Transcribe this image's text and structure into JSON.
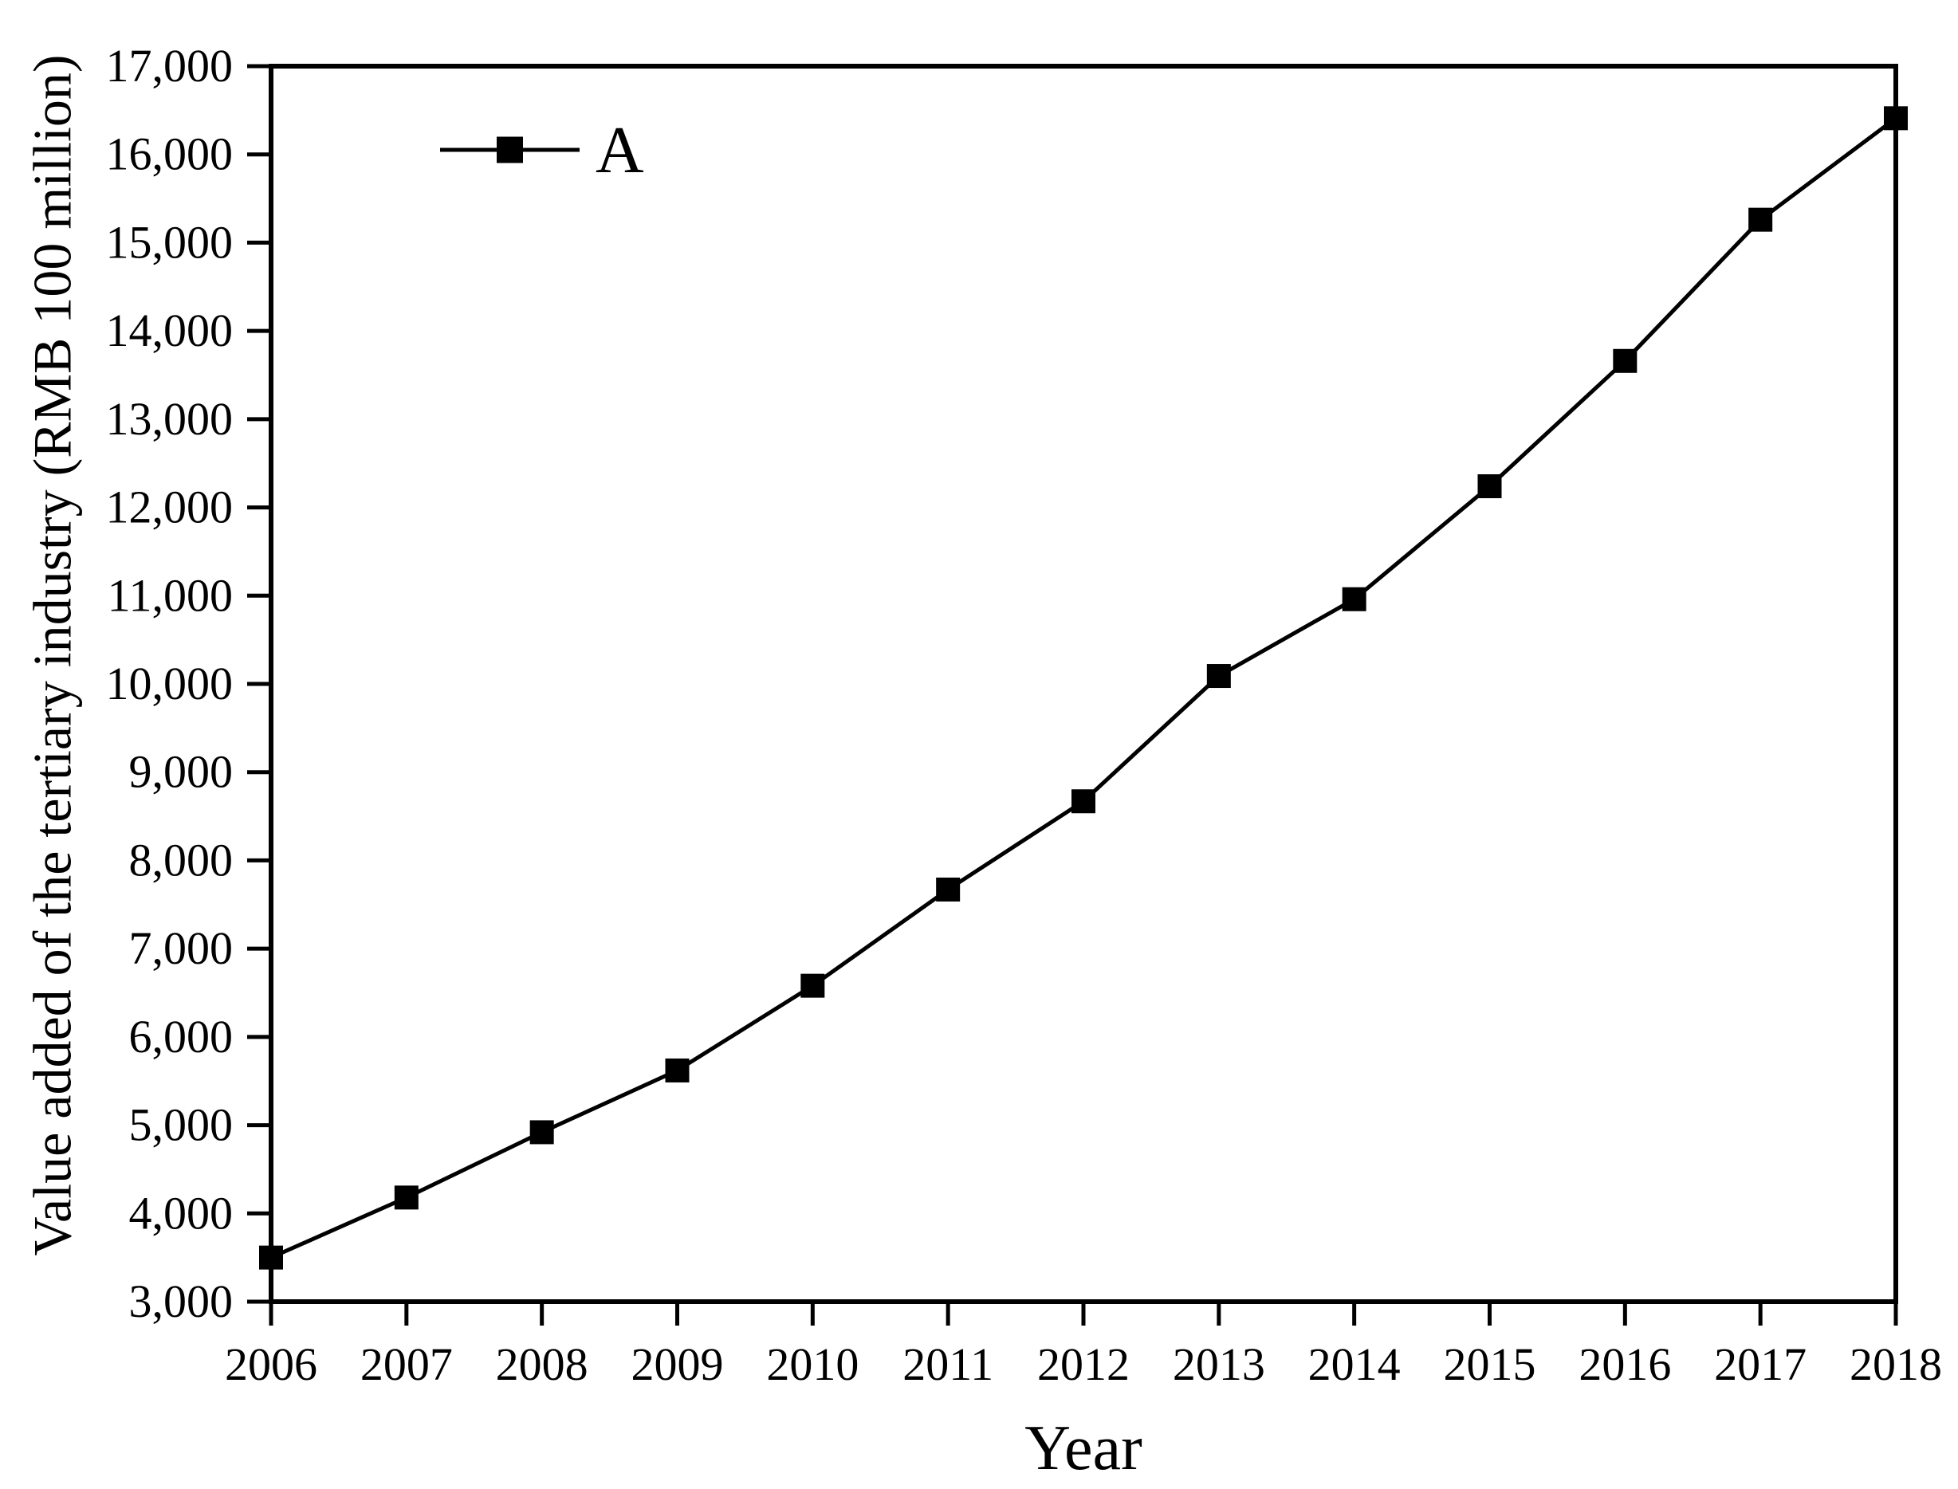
{
  "figure": {
    "background_color": "#ffffff",
    "text_color": "#000000",
    "axis_color": "#000000"
  },
  "chart_data": {
    "type": "line",
    "title": "",
    "xlabel": "Year",
    "ylabel": "Value added of the tertiary industry (RMB 100 million)",
    "categories": [
      "2006",
      "2007",
      "2008",
      "2009",
      "2010",
      "2011",
      "2012",
      "2013",
      "2014",
      "2015",
      "2016",
      "2017",
      "2018"
    ],
    "x": [
      2006,
      2007,
      2008,
      2009,
      2010,
      2011,
      2012,
      2013,
      2014,
      2015,
      2016,
      2017,
      2018
    ],
    "series": [
      {
        "name": "A",
        "color": "#000000",
        "marker": "filled-square",
        "values": [
          3500,
          4180,
          4920,
          5620,
          6580,
          7670,
          8670,
          10090,
          10960,
          12240,
          13660,
          15260,
          16410
        ]
      }
    ],
    "xlim": [
      2006,
      2018
    ],
    "ylim": [
      3000,
      17000
    ],
    "ytick_step": 1000,
    "yticks": [
      3000,
      4000,
      5000,
      6000,
      7000,
      8000,
      9000,
      10000,
      11000,
      12000,
      13000,
      14000,
      15000,
      16000,
      17000
    ],
    "ytick_labels": [
      "3,000",
      "4,000",
      "5,000",
      "6,000",
      "7,000",
      "8,000",
      "9,000",
      "10,000",
      "11,000",
      "12,000",
      "13,000",
      "14,000",
      "15,000",
      "16,000",
      "17,000"
    ],
    "xtick_labels": [
      "2006",
      "2007",
      "2008",
      "2009",
      "2010",
      "2011",
      "2012",
      "2013",
      "2014",
      "2015",
      "2016",
      "2017",
      "2018"
    ],
    "grid": false,
    "legend": {
      "position": "top-left-inside",
      "entries": [
        "A"
      ]
    }
  }
}
